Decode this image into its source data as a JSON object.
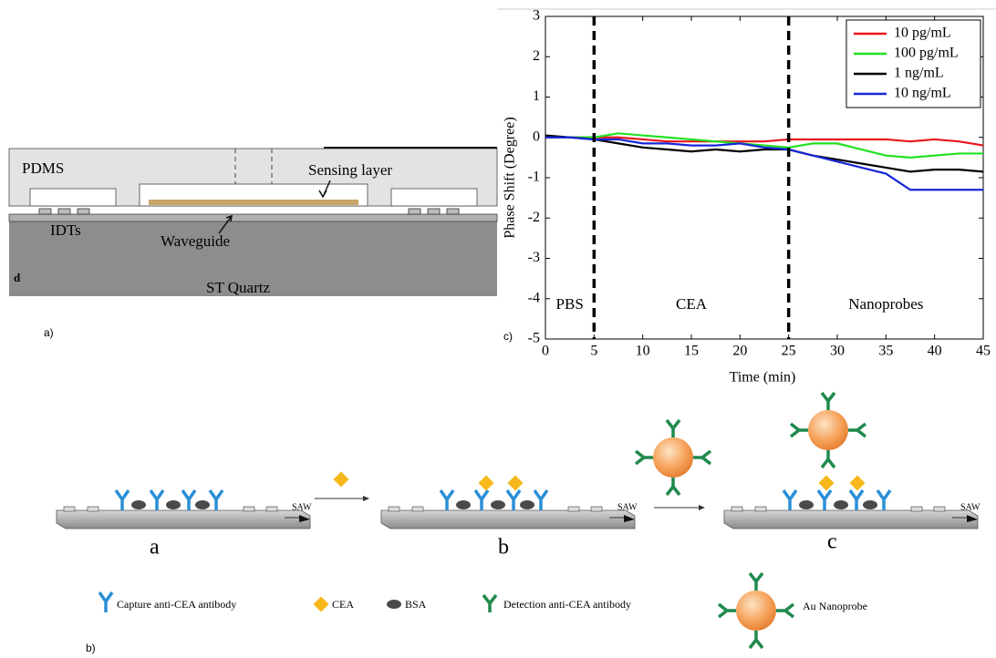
{
  "panel_a": {
    "labels": [
      "PDMS",
      "Sensing layer",
      "IDTs",
      "Waveguide",
      "d",
      "ST Quartz"
    ],
    "caption": "a)"
  },
  "chart_data": {
    "type": "line",
    "caption": "c)",
    "xlabel": "Time (min)",
    "ylabel": "Phase Shift (Degree)",
    "x": [
      0,
      2.5,
      5,
      7.5,
      10,
      12.5,
      15,
      17.5,
      20,
      22.5,
      25,
      27.5,
      30,
      32.5,
      35,
      37.5,
      40,
      42.5,
      45
    ],
    "series": [
      {
        "name": "10 pg/mL",
        "color": "#e8161b",
        "values": [
          0,
          0,
          0,
          0,
          -0.05,
          -0.1,
          -0.1,
          -0.1,
          -0.1,
          -0.1,
          -0.05,
          -0.05,
          -0.05,
          -0.05,
          -0.05,
          -0.1,
          -0.05,
          -0.1,
          -0.2
        ]
      },
      {
        "name": "100 pg/mL",
        "color": "#22e022",
        "values": [
          0,
          0,
          0,
          0.1,
          0.05,
          0,
          -0.05,
          -0.1,
          -0.15,
          -0.2,
          -0.25,
          -0.15,
          -0.15,
          -0.3,
          -0.45,
          -0.5,
          -0.45,
          -0.4,
          -0.4
        ]
      },
      {
        "name": "1 ng/mL",
        "color": "#000000",
        "values": [
          0.05,
          0,
          -0.05,
          -0.15,
          -0.25,
          -0.3,
          -0.35,
          -0.3,
          -0.35,
          -0.3,
          -0.3,
          -0.45,
          -0.55,
          -0.65,
          -0.75,
          -0.85,
          -0.8,
          -0.8,
          -0.85
        ]
      },
      {
        "name": "10 ng/mL",
        "color": "#1726d8",
        "values": [
          0,
          0,
          -0.05,
          -0.05,
          -0.15,
          -0.15,
          -0.2,
          -0.2,
          -0.15,
          -0.25,
          -0.3,
          -0.45,
          -0.6,
          -0.75,
          -0.9,
          -1.3,
          -1.3,
          -1.3,
          -1.3
        ]
      }
    ],
    "xlim": [
      0,
      45
    ],
    "xticks": [
      0,
      5,
      10,
      15,
      20,
      25,
      30,
      35,
      40,
      45
    ],
    "ylim": [
      -5,
      3
    ],
    "yticks": [
      -5,
      -4,
      -3,
      -2,
      -1,
      0,
      1,
      2,
      3
    ],
    "vlines": [
      5,
      25
    ],
    "region_labels": [
      "PBS",
      "CEA",
      "Nanoprobes"
    ],
    "legend": "top-right"
  },
  "panel_b": {
    "stages": [
      "a",
      "b",
      "c"
    ],
    "wave": "SAW",
    "legend": [
      "Capture anti-CEA antibody",
      "CEA",
      "BSA",
      "Detection anti-CEA antibody",
      "Au Nanoprobe"
    ],
    "caption": "b)"
  }
}
